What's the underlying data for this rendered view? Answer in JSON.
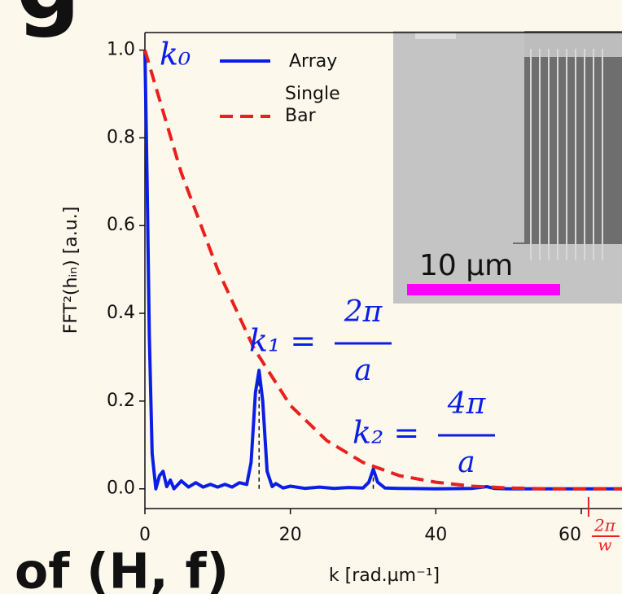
{
  "panel_label": "g",
  "caption_fragment": "of (H, f)",
  "chart_data": {
    "type": "line",
    "xlabel": "k [rad.µm⁻¹]",
    "ylabel": "FFT²(hᵢₙ) [a.u.]",
    "xlim": [
      0,
      65.6
    ],
    "ylim": [
      -0.045,
      1.04
    ],
    "xticks": [
      0,
      20,
      40,
      60
    ],
    "yticks": [
      {
        "value": 0,
        "label": "0.0"
      },
      {
        "value": 0.2,
        "label": "0.2"
      },
      {
        "value": 0.4,
        "label": "0.4"
      },
      {
        "value": 0.6,
        "label": "0.6"
      },
      {
        "value": 0.8,
        "label": "0.8"
      },
      {
        "value": 1.0,
        "label": "1.0"
      }
    ],
    "series": [
      {
        "name": "Array",
        "color": "#0a1ee6",
        "dashed": false,
        "x": [
          0,
          0.3,
          0.6,
          1,
          1.5,
          2,
          2.5,
          3,
          3.5,
          4,
          5,
          6,
          7,
          8,
          9,
          10,
          11,
          12,
          13,
          14,
          14.6,
          15.2,
          15.7,
          16.2,
          16.8,
          17.5,
          18,
          19,
          20,
          22,
          24,
          26,
          28,
          30,
          30.8,
          31.4,
          32,
          33,
          35,
          40,
          45,
          46.5,
          47,
          48,
          50,
          55,
          60,
          65.6
        ],
        "values": [
          1.0,
          0.7,
          0.35,
          0.08,
          0.0,
          0.03,
          0.04,
          0.005,
          0.02,
          0.0,
          0.018,
          0.004,
          0.014,
          0.004,
          0.01,
          0.004,
          0.01,
          0.004,
          0.014,
          0.01,
          0.06,
          0.22,
          0.27,
          0.2,
          0.04,
          0.005,
          0.012,
          0.002,
          0.006,
          0.001,
          0.004,
          0.001,
          0.003,
          0.002,
          0.015,
          0.045,
          0.015,
          0.002,
          0.001,
          0.0,
          0.001,
          0.004,
          0.005,
          0.001,
          0.0,
          0.0,
          0.0,
          0.0
        ]
      },
      {
        "name": "Single Bar",
        "color": "#e8201e",
        "dashed": true,
        "x": [
          0,
          5,
          10,
          15,
          20,
          25,
          30,
          35,
          40,
          45,
          50,
          55,
          60,
          65.6
        ],
        "values": [
          1.0,
          0.72,
          0.5,
          0.32,
          0.19,
          0.11,
          0.06,
          0.03,
          0.015,
          0.006,
          0.002,
          0.0,
          0.0,
          0.0
        ]
      }
    ],
    "peaks": [
      {
        "x": 15.7,
        "y": 0.27
      },
      {
        "x": 31.4,
        "y": 0.045
      }
    ],
    "annotations": [
      {
        "lhs": "k₀"
      },
      {
        "lhs": "k₁ =",
        "numerator": "2π",
        "denominator": "a"
      },
      {
        "lhs": "k₂ =",
        "numerator": "4π",
        "denominator": "a"
      }
    ],
    "cutoff": {
      "value": 61,
      "numerator": "2π",
      "denominator": "w",
      "color": "#e8201e"
    },
    "inset": {
      "scale_label": "10 µm",
      "scale_color": "#ff00ff"
    }
  }
}
